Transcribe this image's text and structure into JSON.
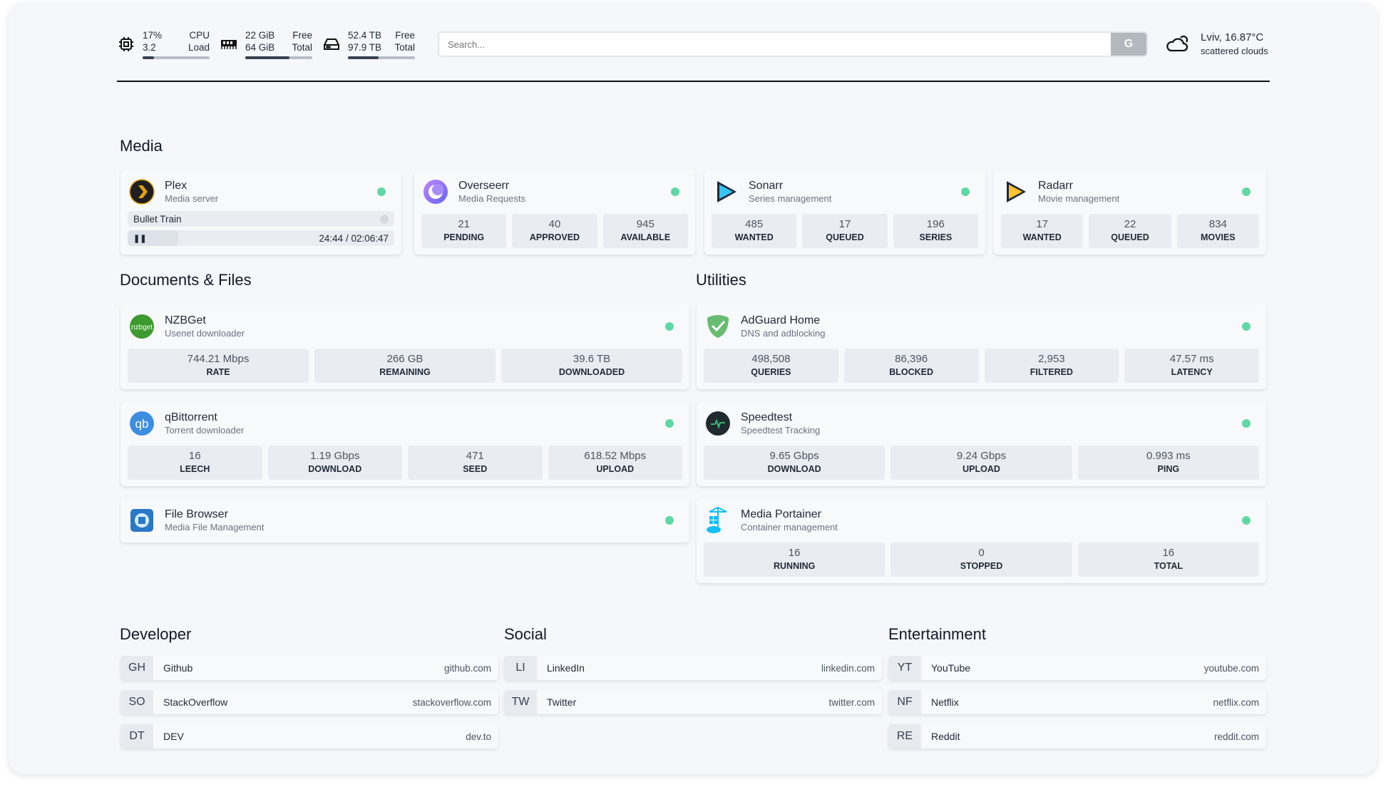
{
  "header": {
    "cpu": {
      "value": "17%",
      "load": "3.2",
      "label1": "CPU",
      "label2": "Load",
      "fill": 17
    },
    "memory": {
      "free": "22 GiB",
      "total": "64 GiB",
      "label1": "Free",
      "label2": "Total",
      "fill": 66
    },
    "disk": {
      "free": "52.4 TB",
      "total": "97.9 TB",
      "label1": "Free",
      "label2": "Total",
      "fill": 46
    },
    "search": {
      "placeholder": "Search...",
      "button": "G"
    },
    "weather": {
      "location": "Lviv, 16.87°C",
      "desc": "scattered clouds"
    }
  },
  "sections": {
    "media": "Media",
    "docs": "Documents & Files",
    "utilities": "Utilities",
    "developer": "Developer",
    "social": "Social",
    "entertainment": "Entertainment"
  },
  "plex": {
    "name": "Plex",
    "desc": "Media server",
    "now_playing": "Bullet Train",
    "time": "24:44 / 02:06:47",
    "progress": 19
  },
  "cards": [
    {
      "id": "overseerr",
      "name": "Overseerr",
      "desc": "Media Requests",
      "stats": [
        [
          "21",
          "PENDING"
        ],
        [
          "40",
          "APPROVED"
        ],
        [
          "945",
          "AVAILABLE"
        ]
      ]
    },
    {
      "id": "sonarr",
      "name": "Sonarr",
      "desc": "Series management",
      "stats": [
        [
          "485",
          "WANTED"
        ],
        [
          "17",
          "QUEUED"
        ],
        [
          "196",
          "SERIES"
        ]
      ]
    },
    {
      "id": "radarr",
      "name": "Radarr",
      "desc": "Movie management",
      "stats": [
        [
          "17",
          "WANTED"
        ],
        [
          "22",
          "QUEUED"
        ],
        [
          "834",
          "MOVIES"
        ]
      ]
    },
    {
      "id": "nzbget",
      "name": "NZBGet",
      "desc": "Usenet downloader",
      "stats": [
        [
          "744.21 Mbps",
          "RATE"
        ],
        [
          "266 GB",
          "REMAINING"
        ],
        [
          "39.6 TB",
          "DOWNLOADED"
        ]
      ]
    },
    {
      "id": "qbittorrent",
      "name": "qBittorrent",
      "desc": "Torrent downloader",
      "stats": [
        [
          "16",
          "LEECH"
        ],
        [
          "1.19 Gbps",
          "DOWNLOAD"
        ],
        [
          "471",
          "SEED"
        ],
        [
          "618.52 Mbps",
          "UPLOAD"
        ]
      ]
    },
    {
      "id": "filebrowser",
      "name": "File Browser",
      "desc": "Media File Management",
      "stats": []
    },
    {
      "id": "adguard",
      "name": "AdGuard Home",
      "desc": "DNS and adblocking",
      "stats": [
        [
          "498,508",
          "QUERIES"
        ],
        [
          "86,396",
          "BLOCKED"
        ],
        [
          "2,953",
          "FILTERED"
        ],
        [
          "47.57 ms",
          "LATENCY"
        ]
      ]
    },
    {
      "id": "speedtest",
      "name": "Speedtest",
      "desc": "Speedtest Tracking",
      "stats": [
        [
          "9.65 Gbps",
          "DOWNLOAD"
        ],
        [
          "9.24 Gbps",
          "UPLOAD"
        ],
        [
          "0.993 ms",
          "PING"
        ]
      ]
    },
    {
      "id": "portainer",
      "name": "Media Portainer",
      "desc": "Container management",
      "stats": [
        [
          "16",
          "RUNNING"
        ],
        [
          "0",
          "STOPPED"
        ],
        [
          "16",
          "TOTAL"
        ]
      ]
    }
  ],
  "bookmarks": {
    "developer": [
      [
        "GH",
        "Github",
        "github.com"
      ],
      [
        "SO",
        "StackOverflow",
        "stackoverflow.com"
      ],
      [
        "DT",
        "DEV",
        "dev.to"
      ]
    ],
    "social": [
      [
        "LI",
        "LinkedIn",
        "linkedin.com"
      ],
      [
        "TW",
        "Twitter",
        "twitter.com"
      ]
    ],
    "entertainment": [
      [
        "YT",
        "YouTube",
        "youtube.com"
      ],
      [
        "NF",
        "Netflix",
        "netflix.com"
      ],
      [
        "RE",
        "Reddit",
        "reddit.com"
      ]
    ]
  },
  "colors": {
    "status_ok": "#5fd9a4",
    "bar_fill": "#374151"
  }
}
